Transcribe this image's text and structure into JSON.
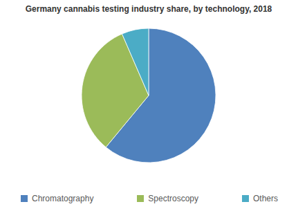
{
  "chart_data": {
    "type": "pie",
    "title": "Germany cannabis testing industry share, by technology, 2018",
    "categories": [
      "Chromatography",
      "Spectroscopy",
      "Others"
    ],
    "values": [
      61,
      32.5,
      6.5
    ],
    "colors": [
      "#4f81bd",
      "#9bbb59",
      "#4bacc6"
    ],
    "legend": "bottom"
  }
}
